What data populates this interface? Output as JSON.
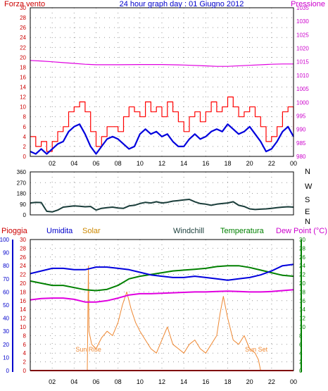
{
  "chart_data": [
    {
      "type": "line",
      "title": "24 hour graph day : 01 Giugno 2012",
      "left_axis_label": "Forza vento",
      "right_axis_label": "Pressione",
      "x_ticks": [
        "02",
        "04",
        "06",
        "08",
        "10",
        "12",
        "14",
        "16",
        "18",
        "20",
        "22",
        "00"
      ],
      "ylim_left": [
        0,
        30
      ],
      "y_ticks_left": [
        0,
        2,
        4,
        6,
        8,
        10,
        12,
        14,
        16,
        18,
        20,
        22,
        24,
        26,
        28,
        30
      ],
      "ylim_right": [
        980,
        1035
      ],
      "y_ticks_right": [
        980,
        985,
        990,
        995,
        1000,
        1005,
        1010,
        1015,
        1020,
        1025,
        1030,
        1035
      ],
      "grid": true,
      "series": [
        {
          "axis": "right",
          "color": "#e000e0",
          "x": [
            0,
            1,
            2,
            3,
            4,
            5,
            6,
            8,
            10,
            12,
            14,
            16,
            17,
            18,
            20,
            22,
            23,
            24
          ],
          "values": [
            1015.5,
            1015.3,
            1015.0,
            1014.7,
            1014.4,
            1014.1,
            1013.9,
            1013.9,
            1014.0,
            1014.0,
            1013.8,
            1013.5,
            1013.3,
            1013.3,
            1013.7,
            1014.1,
            1014.2,
            1014.2
          ]
        },
        {
          "axis": "left",
          "color": "#ff0000",
          "x": [
            0,
            0.5,
            1,
            1.5,
            2,
            2.5,
            3,
            3.5,
            4,
            4.5,
            5,
            5.5,
            6,
            6.5,
            7,
            7.5,
            8,
            8.5,
            9,
            9.5,
            10,
            10.5,
            11,
            11.5,
            12,
            12.5,
            13,
            13.5,
            14,
            14.5,
            15,
            15.5,
            16,
            16.5,
            17,
            17.5,
            18,
            18.5,
            19,
            19.5,
            20,
            20.5,
            21,
            21.5,
            22,
            22.5,
            23,
            23.5,
            24
          ],
          "values": [
            4,
            2,
            3,
            1,
            3,
            5,
            6,
            9,
            10,
            11,
            9,
            5,
            2,
            4,
            6,
            6,
            5,
            8,
            10,
            9,
            8,
            11,
            9,
            10,
            8,
            11,
            9,
            7,
            5,
            8,
            9,
            7,
            9,
            11,
            9,
            10,
            12,
            10,
            8,
            9,
            10,
            8,
            6,
            3,
            4,
            6,
            9,
            10,
            5
          ]
        },
        {
          "axis": "left",
          "color": "#0000dd",
          "x": [
            0,
            0.5,
            1,
            1.5,
            2,
            2.5,
            3,
            3.5,
            4,
            4.5,
            5,
            5.5,
            6,
            6.5,
            7,
            7.5,
            8,
            8.5,
            9,
            9.5,
            10,
            10.5,
            11,
            11.5,
            12,
            12.5,
            13,
            13.5,
            14,
            14.5,
            15,
            15.5,
            16,
            16.5,
            17,
            17.5,
            18,
            18.5,
            19,
            19.5,
            20,
            20.5,
            21,
            21.5,
            22,
            22.5,
            23,
            23.5,
            24
          ],
          "values": [
            1,
            0.5,
            1.5,
            0.5,
            1.5,
            2.5,
            3,
            5,
            6,
            6.5,
            4.5,
            2,
            0.5,
            2,
            3.5,
            4,
            3.5,
            2.5,
            1.5,
            2,
            4.5,
            5.5,
            4.5,
            5,
            4,
            4.5,
            3,
            2,
            2,
            3.5,
            4.5,
            3.5,
            4,
            5,
            5.5,
            5,
            6.5,
            5.5,
            4.5,
            5,
            6,
            4.5,
            3,
            1,
            1.5,
            3,
            5,
            6,
            4
          ]
        }
      ]
    },
    {
      "type": "line",
      "right_labels": [
        "N",
        "W",
        "S",
        "E",
        "N"
      ],
      "ylim": [
        0,
        360
      ],
      "y_ticks": [
        0,
        90,
        180,
        270,
        360
      ],
      "grid": true,
      "series": [
        {
          "color": "#1a3d3a",
          "x": [
            0,
            0.5,
            1,
            1.5,
            2,
            2.5,
            3,
            3.5,
            4,
            4.5,
            5,
            5.5,
            6,
            6.5,
            7,
            7.5,
            8,
            8.5,
            9,
            9.5,
            10,
            10.5,
            11,
            11.5,
            12,
            12.5,
            13,
            13.5,
            14,
            14.5,
            15,
            15.5,
            16,
            16.5,
            17,
            17.5,
            18,
            18.5,
            19,
            19.5,
            20,
            20.5,
            21,
            21.5,
            22,
            22.5,
            23,
            23.5,
            24
          ],
          "values": [
            100,
            105,
            103,
            30,
            25,
            40,
            65,
            70,
            75,
            72,
            68,
            70,
            40,
            55,
            60,
            65,
            58,
            55,
            75,
            80,
            95,
            105,
            100,
            110,
            100,
            105,
            115,
            120,
            125,
            130,
            110,
            95,
            90,
            80,
            90,
            95,
            100,
            110,
            80,
            70,
            50,
            45,
            48,
            50,
            55,
            60,
            65,
            68,
            65
          ]
        }
      ]
    },
    {
      "type": "line",
      "header_labels": [
        "Pioggia",
        "Umidita",
        "Solar",
        "Windchill",
        "Temperatura",
        "Dew Point (°C)"
      ],
      "annotations": [
        "Sun Rise",
        "Sun Set"
      ],
      "sunrise_hour": 5.3,
      "sunset_hour": 20.8,
      "ylim_humidity": [
        0,
        100
      ],
      "y_ticks_humidity": [
        0,
        10,
        20,
        30,
        40,
        50,
        60,
        70,
        80,
        90,
        100
      ],
      "ylim_temperature": [
        0,
        30
      ],
      "y_ticks_temperature": [
        0,
        2,
        4,
        6,
        8,
        10,
        12,
        14,
        16,
        18,
        20,
        22,
        24,
        26,
        28,
        30
      ],
      "grid": true,
      "series": [
        {
          "name": "Umidita",
          "axis": "humidity",
          "color": "#0000dd",
          "x": [
            0,
            1,
            2,
            3,
            4,
            5,
            6,
            7,
            8,
            9,
            10,
            11,
            12,
            13,
            14,
            15,
            16,
            17,
            18,
            19,
            20,
            21,
            22,
            23,
            24
          ],
          "values": [
            74,
            76,
            78,
            78,
            77,
            77,
            79,
            79,
            78,
            77,
            75,
            73,
            72,
            71,
            71,
            72,
            71,
            70,
            69,
            70,
            71,
            73,
            76,
            80,
            81
          ]
        },
        {
          "name": "Temperatura",
          "axis": "temperature",
          "color": "#008000",
          "x": [
            0,
            1,
            2,
            3,
            4,
            5,
            6,
            7,
            8,
            9,
            10,
            11,
            12,
            13,
            14,
            15,
            16,
            17,
            18,
            19,
            20,
            21,
            22,
            23,
            24
          ],
          "values": [
            20.5,
            20,
            19.5,
            19.5,
            19,
            18.5,
            18.3,
            18.6,
            19.5,
            21,
            21.6,
            22,
            22.4,
            22.8,
            23,
            23.2,
            23.4,
            23.8,
            24,
            24,
            23.6,
            23,
            22.4,
            21.8,
            21.6
          ]
        },
        {
          "name": "Dew Point (°C)",
          "axis": "temperature",
          "color": "#e000e0",
          "x": [
            0,
            1,
            2,
            3,
            4,
            5,
            6,
            7,
            8,
            9,
            10,
            11,
            12,
            13,
            14,
            15,
            16,
            17,
            18,
            19,
            20,
            21,
            22,
            23,
            24
          ],
          "values": [
            16.2,
            16.5,
            16.6,
            16.6,
            16.3,
            15.7,
            15.7,
            16,
            16.6,
            17.3,
            17.6,
            17.6,
            17.7,
            17.8,
            17.9,
            18,
            18,
            18.1,
            18.2,
            18.1,
            18,
            18,
            18.1,
            18.3,
            18.5
          ]
        },
        {
          "name": "Solar",
          "axis": "temperature",
          "color": "#ee8833",
          "x": [
            0,
            5.2,
            5.3,
            5.35,
            5.6,
            6,
            6.5,
            7,
            7.5,
            8,
            8.4,
            8.8,
            9.2,
            9.6,
            10,
            10.5,
            11,
            11.5,
            12,
            12.5,
            13,
            13.5,
            14,
            14.5,
            15,
            15.5,
            16,
            16.5,
            17,
            17.3,
            17.6,
            18,
            18.5,
            19,
            19.5,
            20,
            20.5,
            20.8,
            21,
            24
          ],
          "values": [
            0,
            0,
            24,
            9,
            6,
            5,
            7.5,
            9,
            8,
            11,
            15,
            18,
            14,
            11,
            9,
            7,
            5,
            4,
            7,
            10,
            6,
            5,
            4,
            6,
            7,
            5,
            4,
            6,
            8,
            13,
            17,
            12,
            7,
            6,
            8,
            5,
            4,
            2.5,
            0,
            0
          ]
        },
        {
          "name": "Pioggia",
          "axis": "temperature",
          "color": "#ff0000",
          "x": [
            0,
            24
          ],
          "values": [
            0,
            0
          ]
        }
      ]
    }
  ]
}
